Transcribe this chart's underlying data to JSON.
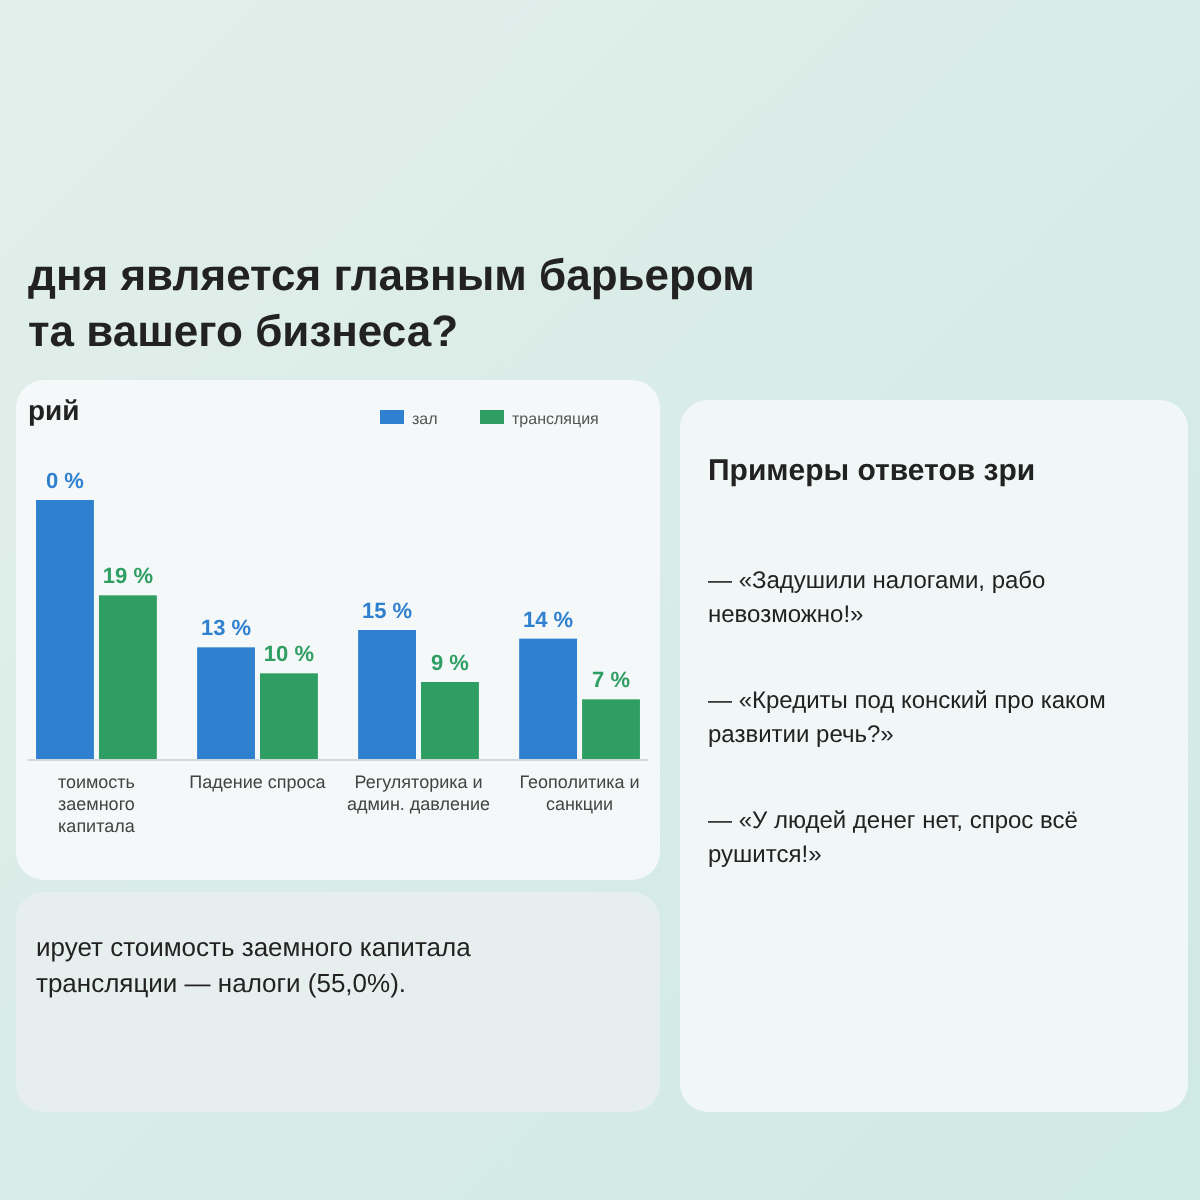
{
  "chart_data": {
    "type": "bar",
    "title": "дня является главным барьером та вашего бизнеса?",
    "subtitle": "рий",
    "categories": [
      "тоимость заемного капитала",
      "Падение спроса",
      "Регуляторика и админ. давление",
      "Геополитика и санкции"
    ],
    "series": [
      {
        "name": "зал",
        "color": "#2f80cf",
        "values": [
          30,
          13,
          15,
          14
        ],
        "value_labels": [
          null,
          "13 %",
          "15 %",
          "14 %"
        ]
      },
      {
        "name": "трансляция",
        "color": "#2e9e62",
        "values": [
          19,
          10,
          9,
          7
        ],
        "value_labels": [
          "19 %",
          "10 %",
          "9 %",
          "7 %"
        ]
      }
    ],
    "legend": "top right",
    "annotations": [
      {
        "text": "0 %",
        "x": "тоимость заемного капитала",
        "y": 30
      },
      "ирует стоимость заемного капитала трансляции — налоги (55,0%).",
      "Примеры ответов зри",
      "— «Задушили налогами, рабо невозможно!»",
      "— «Кредиты под конский про каком развитии речь?»",
      "— «У людей денег нет, спрос всё рушится!»"
    ]
  }
}
